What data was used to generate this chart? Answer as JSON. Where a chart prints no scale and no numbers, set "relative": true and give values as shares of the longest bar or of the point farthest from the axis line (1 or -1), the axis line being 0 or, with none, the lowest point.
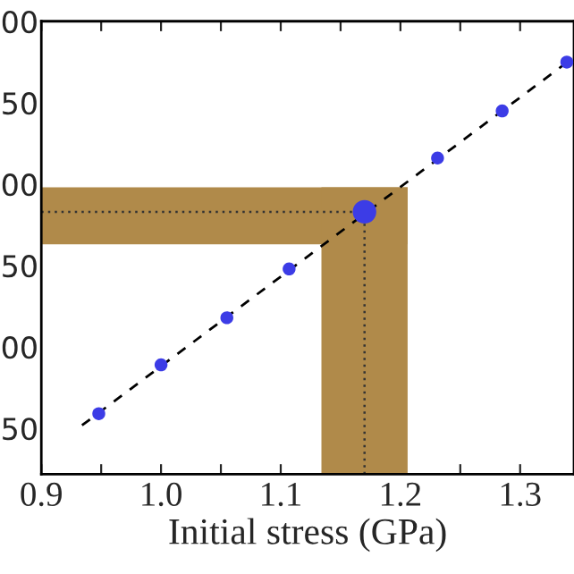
{
  "chart_data": {
    "type": "bubble",
    "xlabel": "Initial stress (GPa)",
    "relative": true,
    "annotations": [
      "50",
      "00",
      "50",
      "00",
      "50",
      "00"
    ],
    "series": [
      {
        "color": "#3c3ce6",
        "x": [
          0.948,
          1.0,
          1.055,
          1.107,
          1.17,
          1.231,
          1.285,
          1.339
        ],
        "values": [
          0.145,
          0.262,
          0.375,
          0.492,
          0.629,
          0.758,
          0.871,
          0.988
        ],
        "sizes": [
          0.3,
          0.3,
          0.3,
          0.3,
          1,
          0.3,
          0.3,
          0.3
        ]
      },
      {
        "type": "line",
        "color": "#000000",
        "line_style": "dashed",
        "marker": "none",
        "x": [
          0.934,
          1.345
        ],
        "values": [
          0.117,
          1
        ]
      }
    ],
    "bands": [
      {
        "axis": "y",
        "from": 0.551,
        "to": 0.688,
        "color": "#b08a4a"
      },
      {
        "axis": "x",
        "from": 1.134,
        "to": 1.206,
        "color": "#b08a4a"
      }
    ],
    "ref_lines": [
      {
        "axis": "y",
        "value": 0.629,
        "color": "#333333",
        "line_style": "dotted"
      },
      {
        "axis": "x",
        "value": 1.17,
        "color": "#333333",
        "line_style": "dotted"
      }
    ],
    "xlim": [
      0.9,
      1.345
    ],
    "xticks": [
      0.9,
      {
        "value": 0.95,
        "label": null
      },
      {
        "value": 1.0,
        "label": "1.0"
      },
      {
        "value": 1.05,
        "label": null
      },
      1.1,
      {
        "value": 1.15,
        "label": null
      },
      1.2,
      {
        "value": 1.25,
        "label": null
      },
      1.3
    ],
    "grid": false,
    "legend": false
  }
}
